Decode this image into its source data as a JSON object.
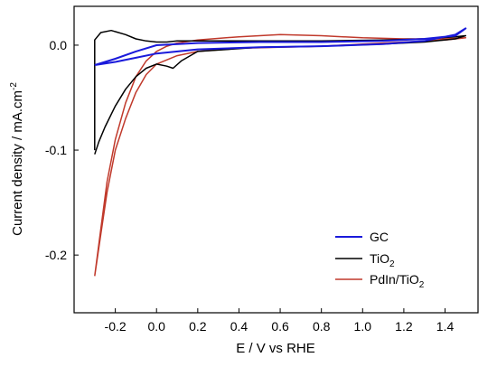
{
  "chart_data": {
    "type": "line",
    "xlabel": "E / V vs RHE",
    "ylabel": "Current density / mA.cm",
    "ylabel_sup": "-2",
    "xlim": [
      -0.4,
      1.56
    ],
    "ylim": [
      -0.255,
      0.037
    ],
    "x_ticks": [
      -0.2,
      0.0,
      0.2,
      0.4,
      0.6,
      0.8,
      1.0,
      1.2,
      1.4
    ],
    "x_tick_labels": [
      "-0.2",
      "0.0",
      "0.2",
      "0.4",
      "0.6",
      "0.8",
      "1.0",
      "1.2",
      "1.4"
    ],
    "y_ticks": [
      -0.2,
      -0.1,
      0.0
    ],
    "y_tick_labels": [
      "-0.2",
      "-0.1",
      "0.0"
    ],
    "legend_position": "bottom-right",
    "series": [
      {
        "name": "GC",
        "color": "#1a1adb",
        "x": [
          -0.3,
          -0.2,
          -0.1,
          0.0,
          0.2,
          0.5,
          0.8,
          1.1,
          1.3,
          1.45,
          1.5,
          1.45,
          1.3,
          1.1,
          0.8,
          0.5,
          0.2,
          0.0,
          -0.1,
          -0.2,
          -0.3
        ],
        "y": [
          -0.019,
          -0.016,
          -0.012,
          -0.008,
          -0.004,
          -0.002,
          -0.001,
          0.001,
          0.004,
          0.01,
          0.016,
          0.009,
          0.006,
          0.004,
          0.003,
          0.003,
          0.002,
          0.0,
          -0.006,
          -0.013,
          -0.019
        ]
      },
      {
        "name": "TiO",
        "name_sub": "2",
        "color": "#000000",
        "x": [
          -0.3,
          -0.3,
          -0.27,
          -0.22,
          -0.15,
          -0.1,
          -0.05,
          0.0,
          0.05,
          0.1,
          0.2,
          0.5,
          0.8,
          1.1,
          1.3,
          1.45,
          1.5,
          1.45,
          1.3,
          1.1,
          0.8,
          0.5,
          0.2,
          0.12,
          0.08,
          0.05,
          0.0,
          -0.05,
          -0.1,
          -0.15,
          -0.2,
          -0.25,
          -0.28,
          -0.3
        ],
        "y": [
          -0.1,
          0.005,
          0.012,
          0.014,
          0.01,
          0.006,
          0.004,
          0.003,
          0.003,
          0.004,
          0.004,
          0.004,
          0.004,
          0.005,
          0.006,
          0.008,
          0.009,
          0.006,
          0.003,
          0.001,
          -0.001,
          -0.002,
          -0.006,
          -0.015,
          -0.022,
          -0.02,
          -0.018,
          -0.022,
          -0.03,
          -0.042,
          -0.058,
          -0.078,
          -0.092,
          -0.104
        ]
      },
      {
        "name": "PdIn/TiO",
        "name_sub": "2",
        "color": "#c0392b",
        "x": [
          -0.3,
          -0.27,
          -0.24,
          -0.2,
          -0.15,
          -0.1,
          -0.05,
          0.0,
          0.05,
          0.1,
          0.2,
          0.4,
          0.6,
          0.8,
          1.0,
          1.2,
          1.4,
          1.5,
          1.4,
          1.2,
          1.0,
          0.8,
          0.6,
          0.4,
          0.2,
          0.1,
          0.0,
          -0.05,
          -0.1,
          -0.15,
          -0.2,
          -0.24,
          -0.27,
          -0.3
        ],
        "y": [
          -0.22,
          -0.175,
          -0.13,
          -0.09,
          -0.055,
          -0.03,
          -0.015,
          -0.006,
          -0.001,
          0.002,
          0.005,
          0.008,
          0.01,
          0.009,
          0.007,
          0.006,
          0.006,
          0.007,
          0.005,
          0.003,
          0.001,
          -0.001,
          -0.002,
          -0.003,
          -0.006,
          -0.01,
          -0.018,
          -0.028,
          -0.045,
          -0.07,
          -0.1,
          -0.14,
          -0.18,
          -0.22
        ]
      }
    ]
  }
}
